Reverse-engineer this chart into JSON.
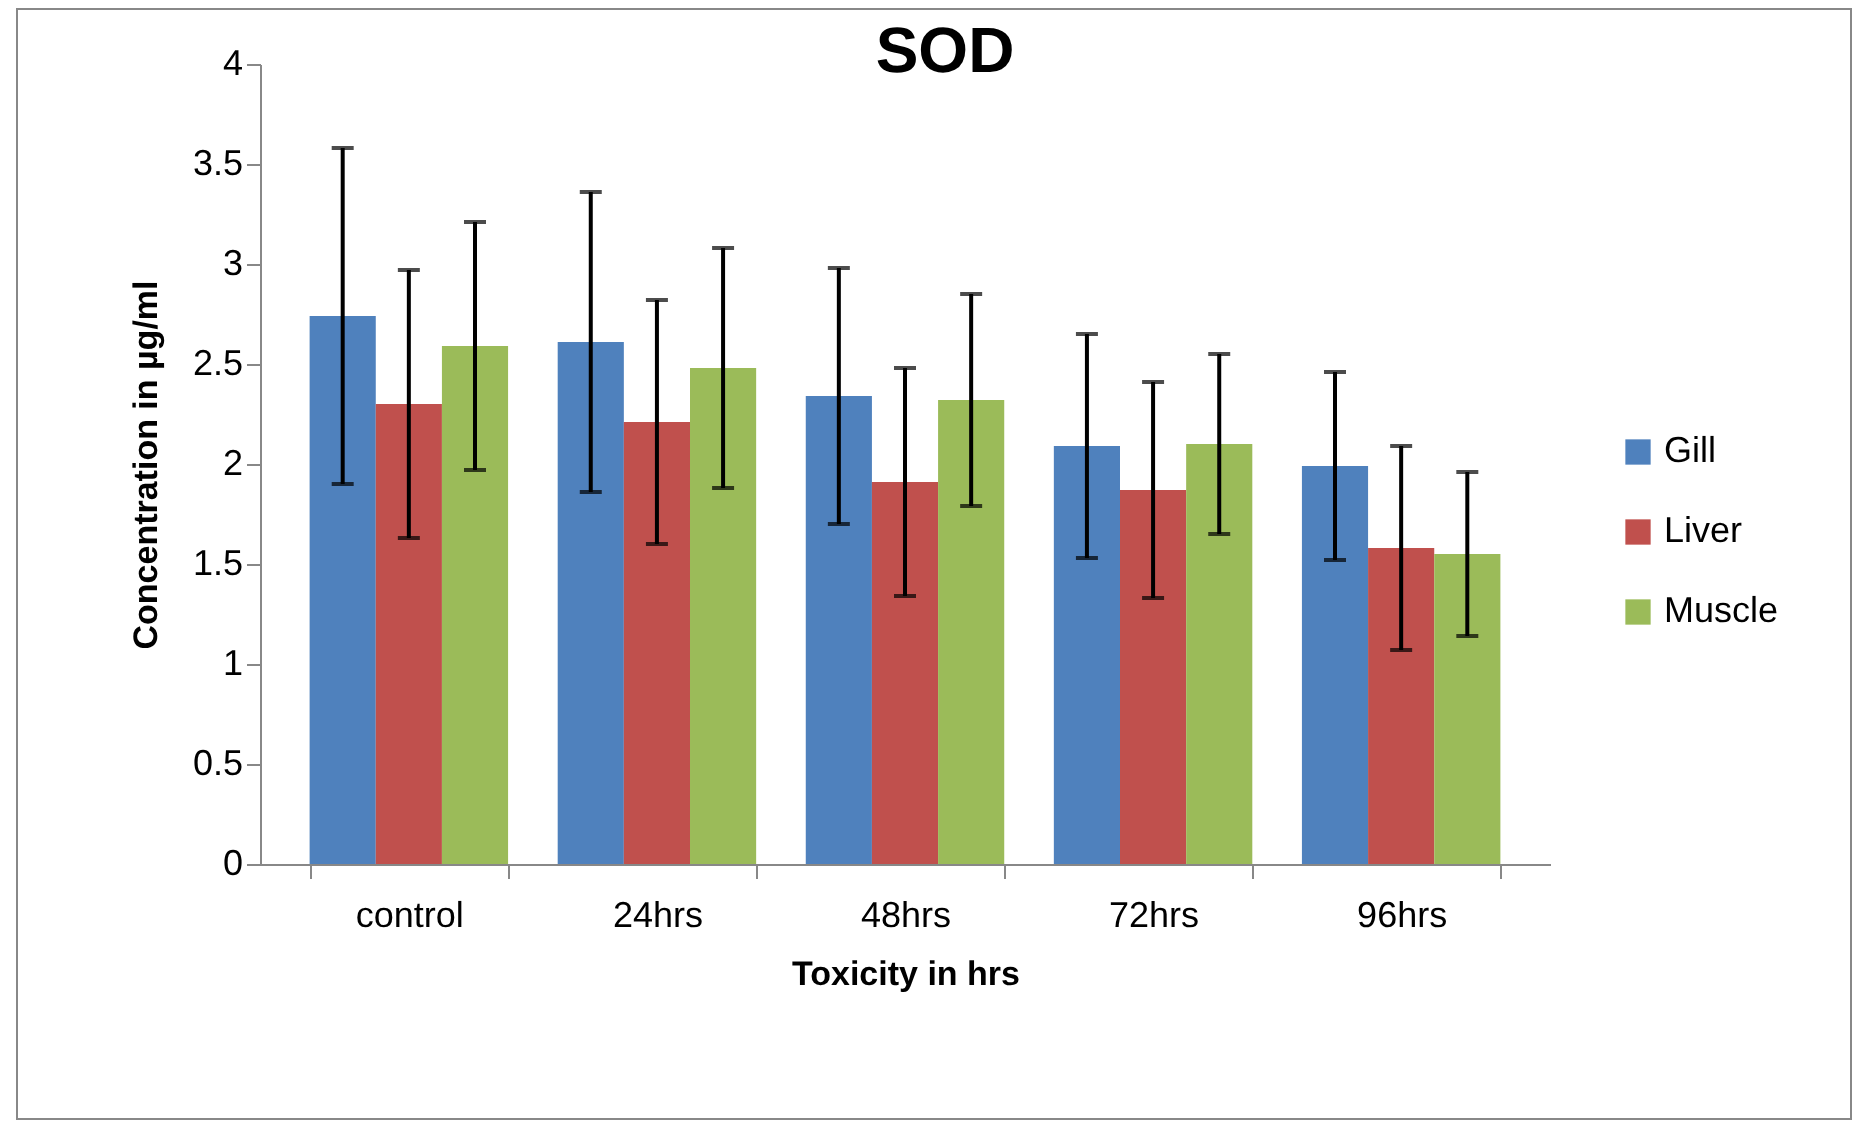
{
  "chart_data": {
    "type": "bar",
    "title": "SOD",
    "xlabel": "Toxicity in hrs",
    "ylabel": "Concentration in µg/ml",
    "categories": [
      "control",
      "24hrs",
      "48hrs",
      "72hrs",
      "96hrs"
    ],
    "series": [
      {
        "name": "Gill",
        "color": "#4f81bd",
        "values": [
          2.74,
          2.61,
          2.34,
          2.09,
          1.99
        ],
        "errors": [
          0.84,
          0.75,
          0.64,
          0.56,
          0.47
        ]
      },
      {
        "name": "Liver",
        "color": "#c0504d",
        "values": [
          2.3,
          2.21,
          1.91,
          1.87,
          1.58
        ],
        "errors": [
          0.67,
          0.61,
          0.57,
          0.54,
          0.51
        ]
      },
      {
        "name": "Muscle",
        "color": "#9bbb59",
        "values": [
          2.59,
          2.48,
          2.32,
          2.1,
          1.55
        ],
        "errors": [
          0.62,
          0.6,
          0.53,
          0.45,
          0.41
        ]
      }
    ],
    "ylim": [
      0,
      4
    ],
    "yticks": [
      0,
      0.5,
      1,
      1.5,
      2,
      2.5,
      3,
      3.5,
      4
    ],
    "grid": false,
    "legend": "right"
  }
}
